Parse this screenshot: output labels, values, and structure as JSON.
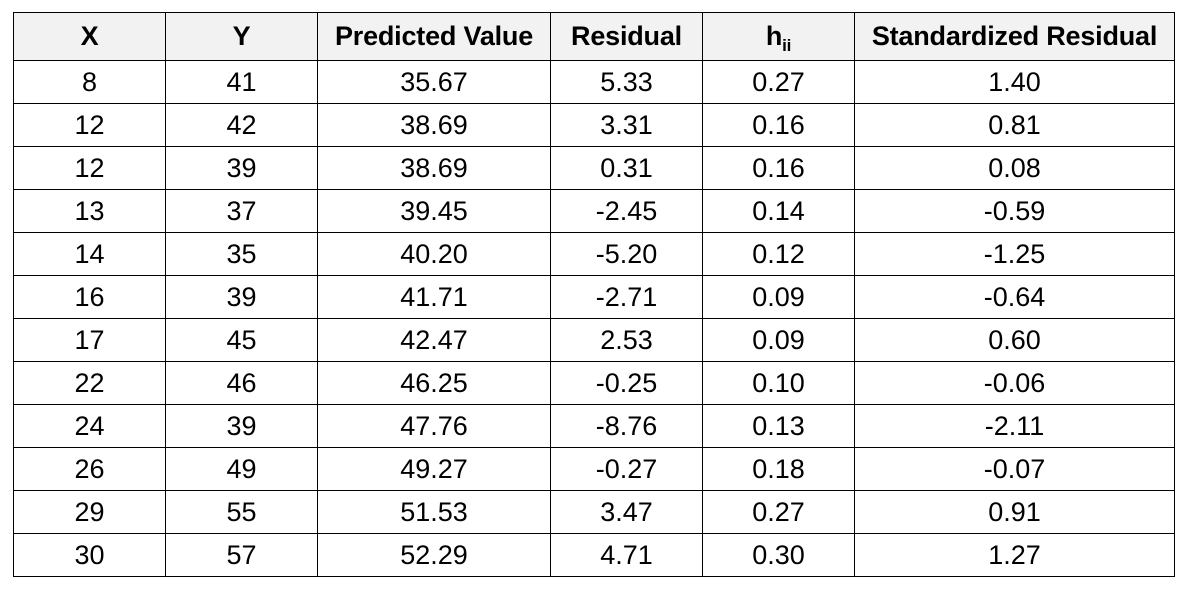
{
  "chart_data": {
    "type": "table",
    "columns": [
      {
        "key": "x",
        "label": "X"
      },
      {
        "key": "y",
        "label": "Y"
      },
      {
        "key": "predicted",
        "label": "Predicted Value"
      },
      {
        "key": "residual",
        "label": "Residual"
      },
      {
        "key": "hii",
        "label": "h",
        "sub": "ii"
      },
      {
        "key": "std_residual",
        "label": "Standardized Residual"
      }
    ],
    "rows": [
      {
        "x": "8",
        "y": "41",
        "predicted": "35.67",
        "residual": "5.33",
        "hii": "0.27",
        "std_residual": "1.40"
      },
      {
        "x": "12",
        "y": "42",
        "predicted": "38.69",
        "residual": "3.31",
        "hii": "0.16",
        "std_residual": "0.81"
      },
      {
        "x": "12",
        "y": "39",
        "predicted": "38.69",
        "residual": "0.31",
        "hii": "0.16",
        "std_residual": "0.08"
      },
      {
        "x": "13",
        "y": "37",
        "predicted": "39.45",
        "residual": "-2.45",
        "hii": "0.14",
        "std_residual": "-0.59"
      },
      {
        "x": "14",
        "y": "35",
        "predicted": "40.20",
        "residual": "-5.20",
        "hii": "0.12",
        "std_residual": "-1.25"
      },
      {
        "x": "16",
        "y": "39",
        "predicted": "41.71",
        "residual": "-2.71",
        "hii": "0.09",
        "std_residual": "-0.64"
      },
      {
        "x": "17",
        "y": "45",
        "predicted": "42.47",
        "residual": "2.53",
        "hii": "0.09",
        "std_residual": "0.60"
      },
      {
        "x": "22",
        "y": "46",
        "predicted": "46.25",
        "residual": "-0.25",
        "hii": "0.10",
        "std_residual": "-0.06"
      },
      {
        "x": "24",
        "y": "39",
        "predicted": "47.76",
        "residual": "-8.76",
        "hii": "0.13",
        "std_residual": "-2.11"
      },
      {
        "x": "26",
        "y": "49",
        "predicted": "49.27",
        "residual": "-0.27",
        "hii": "0.18",
        "std_residual": "-0.07"
      },
      {
        "x": "29",
        "y": "55",
        "predicted": "51.53",
        "residual": "3.47",
        "hii": "0.27",
        "std_residual": "0.91"
      },
      {
        "x": "30",
        "y": "57",
        "predicted": "52.29",
        "residual": "4.71",
        "hii": "0.30",
        "std_residual": "1.27"
      }
    ]
  },
  "colors": {
    "header_bg": "#f2f2f2",
    "border": "#000000",
    "text": "#000000"
  }
}
